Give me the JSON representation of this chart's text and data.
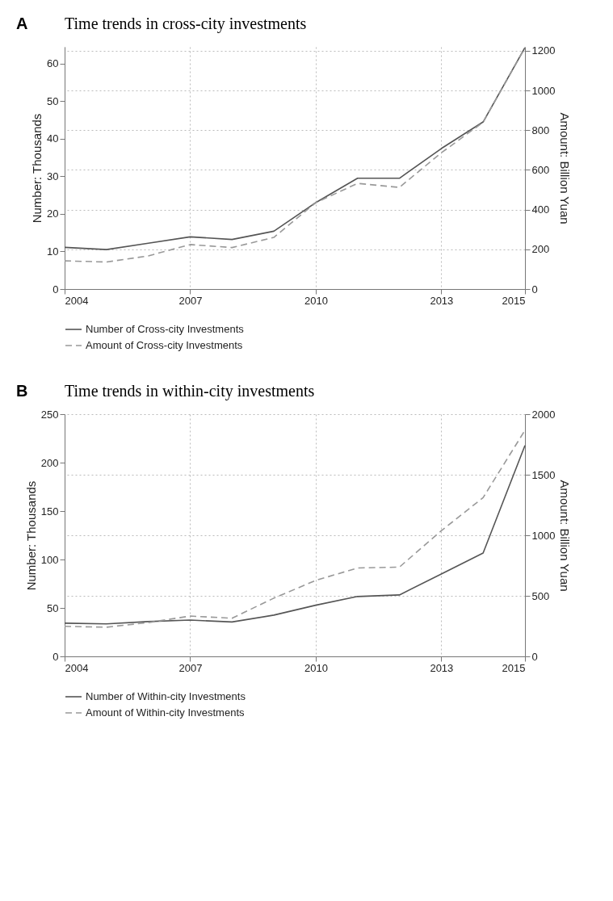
{
  "chart_data": [
    {
      "type": "line",
      "title": "Time trends in cross-city investments",
      "ylabel": "Number: Thousands",
      "y2label": "Amount: Billion Yuan",
      "annotations": [
        "A"
      ],
      "x": [
        2004,
        2005,
        2006,
        2007,
        2008,
        2009,
        2010,
        2011,
        2012,
        2013,
        2014,
        2015
      ],
      "xlim": [
        2004,
        2015
      ],
      "xticks": [
        2004,
        2007,
        2010,
        2013,
        2015
      ],
      "ylim": [
        0,
        64.5
      ],
      "yticks": [
        0,
        10,
        20,
        30,
        40,
        50,
        60
      ],
      "y2lim": [
        0,
        1220
      ],
      "y2ticks": [
        0,
        200,
        400,
        600,
        800,
        1000,
        1200
      ],
      "grid": true,
      "legend": "bottom",
      "series": [
        {
          "name": "Number of Cross-city Investments",
          "color": "#555555",
          "line_style": "solid",
          "values": [
            11.1,
            10.5,
            12.2,
            13.9,
            13.2,
            15.4,
            23.0,
            29.5,
            29.5,
            37.4,
            44.5,
            64.3
          ]
        },
        {
          "name": "Amount of Cross-city Investments",
          "color": "#999999",
          "line_style": "dashed",
          "axis": "y2",
          "values": [
            142,
            136,
            167,
            224,
            209,
            260,
            435,
            532,
            512,
            686,
            840,
            1215
          ]
        }
      ]
    },
    {
      "type": "line",
      "title": "Time trends in within-city investments",
      "ylabel": "Number: Thousands",
      "y2label": "Amount: Billion Yuan",
      "annotations": [
        "B"
      ],
      "x": [
        2004,
        2005,
        2006,
        2007,
        2008,
        2009,
        2010,
        2011,
        2012,
        2013,
        2014,
        2015
      ],
      "xlim": [
        2004,
        2015
      ],
      "xticks": [
        2004,
        2007,
        2010,
        2013,
        2015
      ],
      "ylim": [
        0,
        250
      ],
      "yticks": [
        0,
        50,
        100,
        150,
        200,
        250
      ],
      "y2lim": [
        0,
        2000
      ],
      "y2ticks": [
        0,
        500,
        1000,
        1500,
        2000
      ],
      "grid": true,
      "legend": "bottom",
      "series": [
        {
          "name": "Number of Within-city Investments",
          "color": "#555555",
          "line_style": "solid",
          "values": [
            34.3,
            33.6,
            35.9,
            37.5,
            35.5,
            42.6,
            52.8,
            61.8,
            63.4,
            85.0,
            106.6,
            217.7
          ]
        },
        {
          "name": "Amount of Within-city Investments",
          "color": "#999999",
          "line_style": "dashed",
          "axis": "y2",
          "values": [
            248,
            241,
            279,
            333,
            315,
            481,
            627,
            730,
            737,
            1037,
            1311,
            1867
          ]
        }
      ]
    }
  ]
}
